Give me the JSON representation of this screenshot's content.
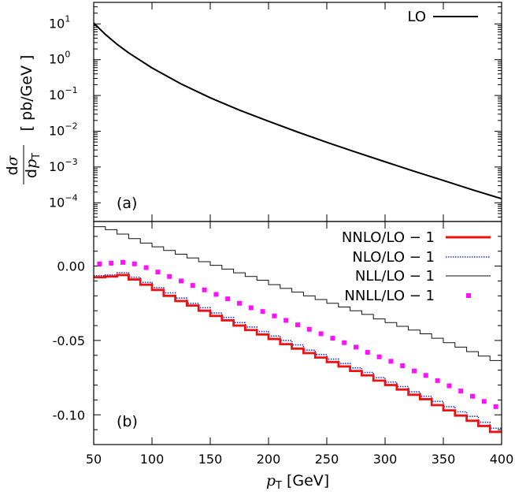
{
  "chart_data": [
    {
      "type": "line",
      "panel_label": "(a)",
      "ylabel": {
        "numerator": "dσ",
        "denominator": "dp_T",
        "unit": "[ pb/GeV ]"
      },
      "xlim": [
        50,
        400
      ],
      "ylim": [
        3e-05,
        40
      ],
      "yscale": "log",
      "y_ticks": [
        {
          "base": "10",
          "exp": "1",
          "value": 10
        },
        {
          "base": "10",
          "exp": "0",
          "value": 1
        },
        {
          "base": "10",
          "exp": "−1",
          "value": 0.1
        },
        {
          "base": "10",
          "exp": "−2",
          "value": 0.01
        },
        {
          "base": "10",
          "exp": "−3",
          "value": 0.001
        },
        {
          "base": "10",
          "exp": "−4",
          "value": 0.0001
        }
      ],
      "legend_position": "top-right",
      "series": [
        {
          "name": "LO",
          "color": "#000000",
          "x": [
            50,
            60,
            70,
            80,
            100,
            125,
            150,
            175,
            200,
            225,
            250,
            275,
            300,
            325,
            350,
            375,
            400
          ],
          "values": [
            10.5,
            5.1,
            2.7,
            1.55,
            0.59,
            0.21,
            0.086,
            0.039,
            0.019,
            0.0095,
            0.0049,
            0.0026,
            0.0014,
            0.00076,
            0.00042,
            0.00023,
            0.00013
          ]
        }
      ]
    },
    {
      "type": "line",
      "panel_label": "(b)",
      "xlabel": {
        "symbol": "p",
        "sub": "T",
        "unit": "[GeV]"
      },
      "xlim": [
        50,
        400
      ],
      "ylim": [
        -0.12,
        0.03
      ],
      "x_ticks": [
        "50",
        "100",
        "150",
        "200",
        "250",
        "300",
        "350",
        "400"
      ],
      "y_ticks": [
        "0.00",
        "-0.05",
        "-0.10"
      ],
      "legend_position": "top-right",
      "bin_edges": [
        50,
        60,
        70,
        80,
        90,
        100,
        110,
        120,
        130,
        140,
        150,
        160,
        170,
        180,
        190,
        200,
        210,
        220,
        230,
        240,
        250,
        260,
        270,
        280,
        290,
        300,
        310,
        320,
        330,
        340,
        350,
        360,
        370,
        380,
        390,
        400
      ],
      "series": [
        {
          "name": "NNLO/LO − 1",
          "style": "step",
          "color": "#ee1111",
          "values": [
            -0.0075,
            -0.007,
            -0.006,
            -0.009,
            -0.0125,
            -0.016,
            -0.02,
            -0.0235,
            -0.0265,
            -0.03,
            -0.0335,
            -0.0365,
            -0.04,
            -0.043,
            -0.046,
            -0.049,
            -0.0525,
            -0.0555,
            -0.0585,
            -0.0615,
            -0.0645,
            -0.0675,
            -0.0705,
            -0.0735,
            -0.077,
            -0.08,
            -0.083,
            -0.0865,
            -0.0895,
            -0.0935,
            -0.097,
            -0.1005,
            -0.104,
            -0.1075,
            -0.1115
          ]
        },
        {
          "name": "NLO/LO − 1",
          "style": "step",
          "color": "#2233ee",
          "values": [
            -0.0065,
            -0.006,
            -0.0045,
            -0.0075,
            -0.011,
            -0.0145,
            -0.018,
            -0.0215,
            -0.025,
            -0.028,
            -0.0315,
            -0.0345,
            -0.038,
            -0.041,
            -0.044,
            -0.047,
            -0.05,
            -0.053,
            -0.0565,
            -0.0595,
            -0.0625,
            -0.0655,
            -0.0685,
            -0.0715,
            -0.075,
            -0.078,
            -0.081,
            -0.0845,
            -0.0875,
            -0.091,
            -0.0945,
            -0.098,
            -0.101,
            -0.105,
            -0.109
          ]
        },
        {
          "name": "NLL/LO − 1",
          "style": "step",
          "color": "#111111",
          "values": [
            0.0265,
            0.0245,
            0.0215,
            0.0185,
            0.0155,
            0.013,
            0.0105,
            0.008,
            0.0055,
            0.003,
            0.0005,
            -0.002,
            -0.0045,
            -0.007,
            -0.0095,
            -0.0125,
            -0.015,
            -0.0175,
            -0.02,
            -0.0225,
            -0.025,
            -0.0275,
            -0.03,
            -0.0325,
            -0.0355,
            -0.038,
            -0.0405,
            -0.043,
            -0.0455,
            -0.0485,
            -0.0515,
            -0.0545,
            -0.0575,
            -0.0605,
            -0.0635
          ]
        },
        {
          "name": "NNLL/LO − 1",
          "style": "points",
          "color": "#ff11ff",
          "values": [
            0.0015,
            0.002,
            0.0025,
            0.0015,
            -0.001,
            -0.004,
            -0.007,
            -0.01,
            -0.013,
            -0.016,
            -0.019,
            -0.022,
            -0.025,
            -0.028,
            -0.0305,
            -0.0335,
            -0.0365,
            -0.0395,
            -0.0425,
            -0.0455,
            -0.0485,
            -0.0515,
            -0.0545,
            -0.058,
            -0.061,
            -0.064,
            -0.067,
            -0.0705,
            -0.0735,
            -0.077,
            -0.0805,
            -0.084,
            -0.0875,
            -0.091,
            -0.0945
          ]
        }
      ]
    }
  ]
}
